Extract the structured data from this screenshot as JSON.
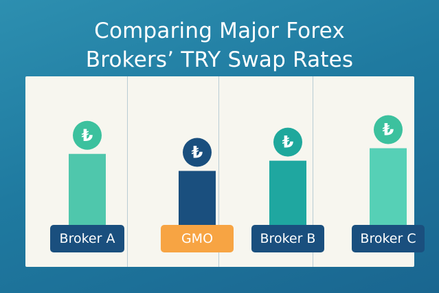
{
  "title": {
    "line1": "Comparing Major Forex",
    "line2": "Brokers’ TRY Swap Rates"
  },
  "icon": {
    "name": "turkish-lira-coin-icon",
    "glyph": "₺"
  },
  "chart_data": {
    "type": "bar",
    "title": "Comparing Major Forex Brokers’ TRY Swap Rates",
    "categories": [
      "Broker A",
      "GMO",
      "Broker B",
      "Broker C"
    ],
    "values": [
      130,
      100,
      118,
      140
    ],
    "ylim": [
      0,
      160
    ],
    "grid": false,
    "legend": "none",
    "bar_colors": [
      "#4fc7ac",
      "#1a4f7e",
      "#1fa7a0",
      "#56d0b6"
    ],
    "coin_colors": [
      "#3cc19e",
      "#1a4f7e",
      "#1fa89c",
      "#3cc19e"
    ],
    "label_colors": [
      "#1a4f7e",
      "#f7a443",
      "#1a4f7e",
      "#1a4f7e"
    ]
  }
}
